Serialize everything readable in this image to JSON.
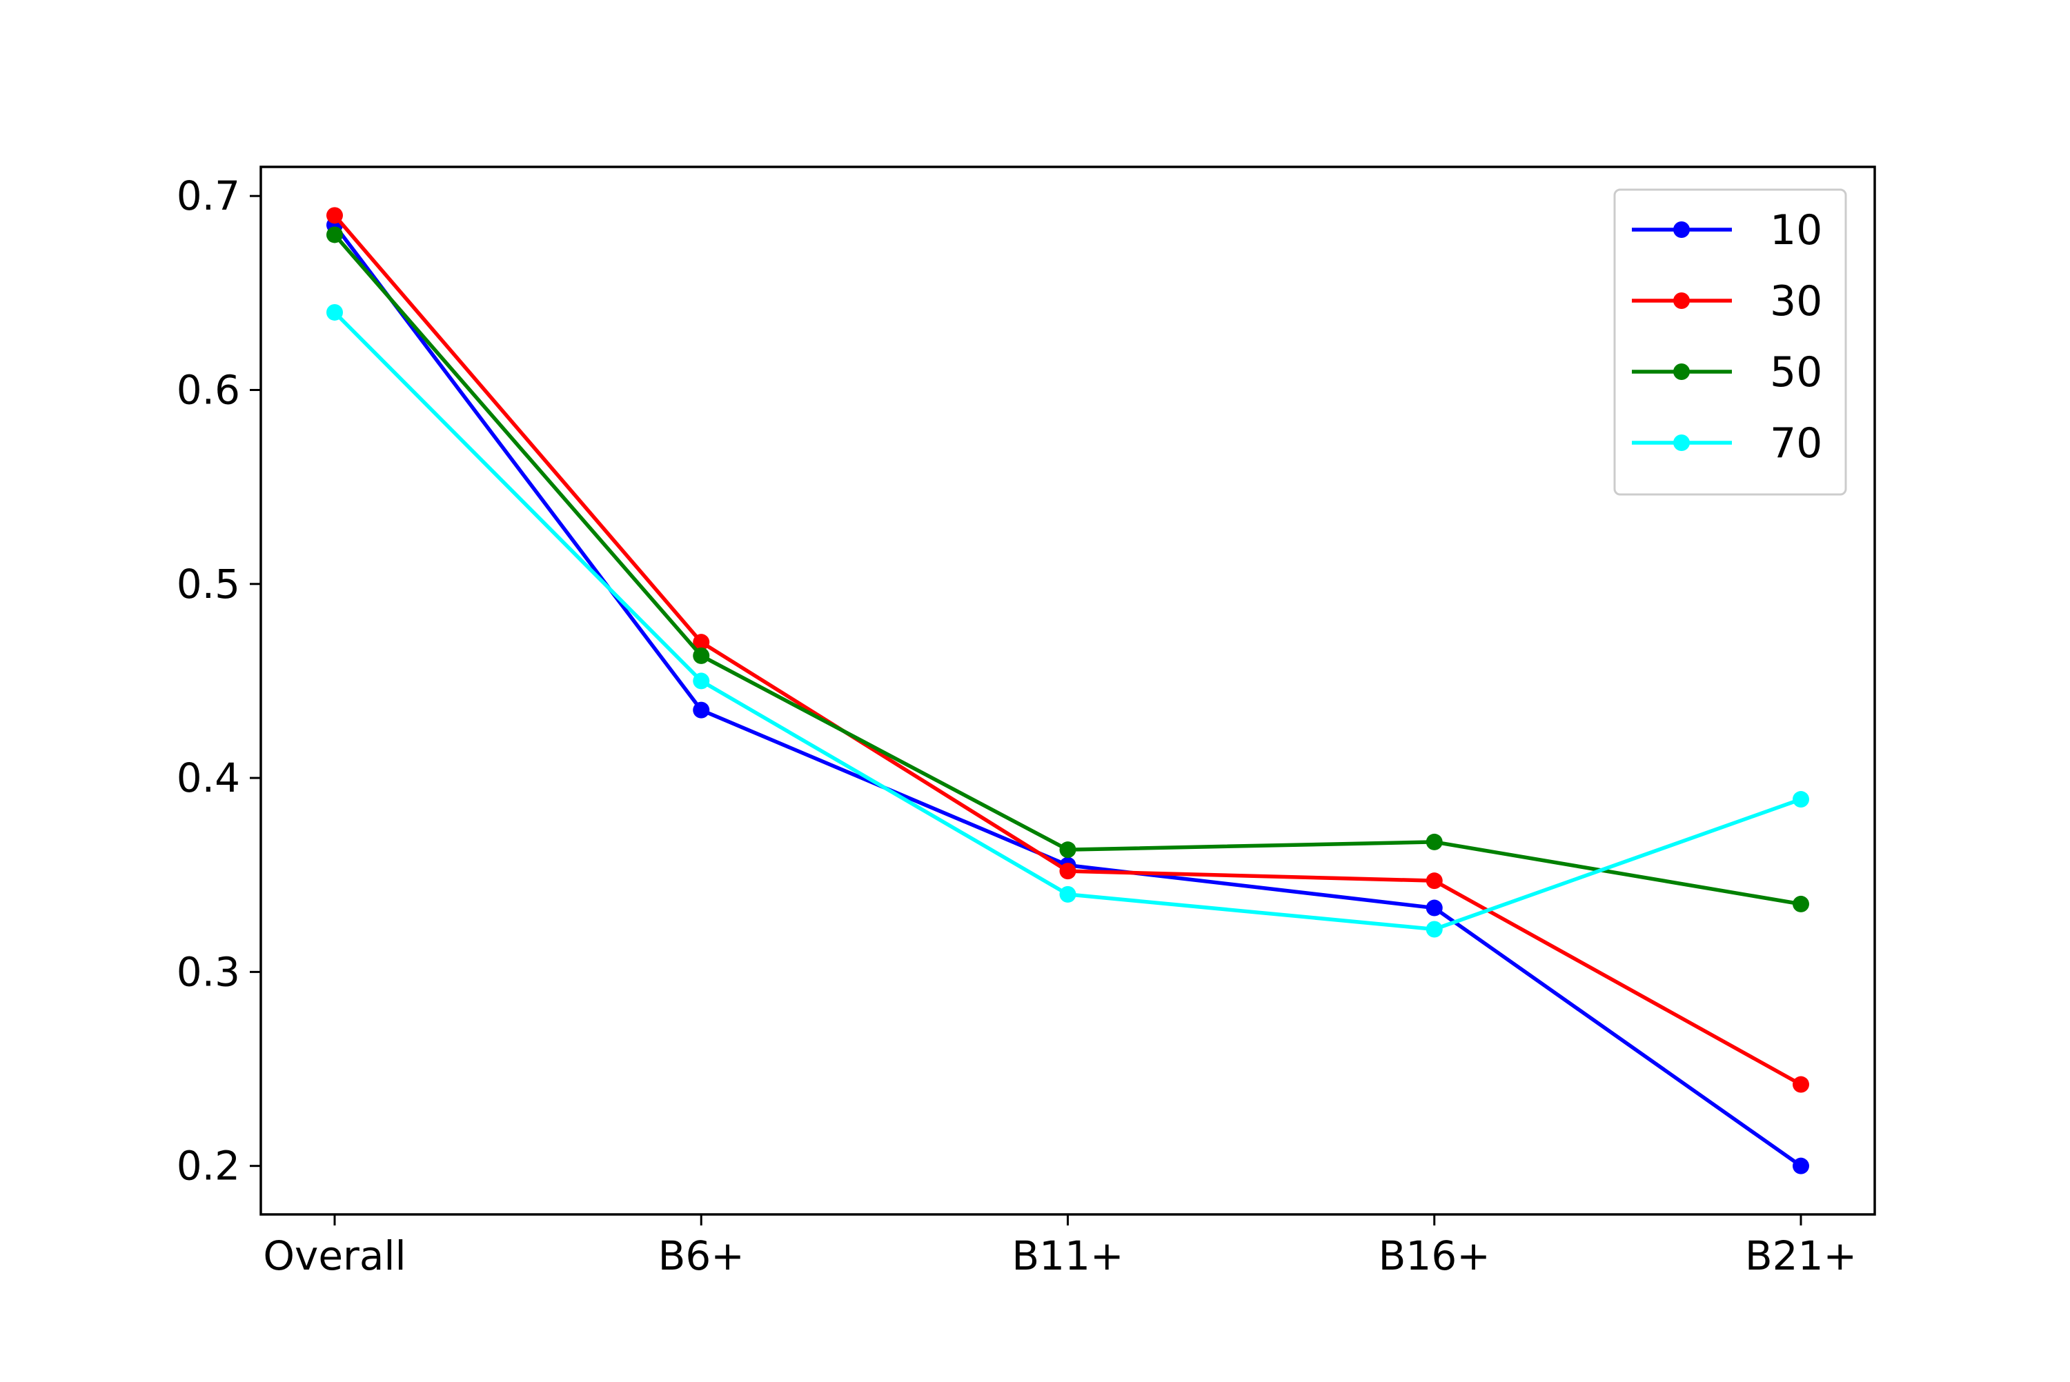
{
  "chart_data": {
    "type": "line",
    "title": "",
    "xlabel": "",
    "ylabel": "",
    "categories": [
      "Overall",
      "B6+",
      "B11+",
      "B16+",
      "B21+"
    ],
    "ylim": [
      0.175,
      0.715
    ],
    "yticks": [
      0.2,
      0.3,
      0.4,
      0.5,
      0.6,
      0.7
    ],
    "ytick_labels": [
      "0.2",
      "0.3",
      "0.4",
      "0.5",
      "0.6",
      "0.7"
    ],
    "grid": false,
    "legend": "upper-right",
    "series": [
      {
        "name": "10",
        "color": "#0000ff",
        "values": [
          0.685,
          0.435,
          0.355,
          0.333,
          0.2
        ]
      },
      {
        "name": "30",
        "color": "#ff0000",
        "values": [
          0.69,
          0.47,
          0.352,
          0.347,
          0.242
        ]
      },
      {
        "name": "50",
        "color": "#008000",
        "values": [
          0.68,
          0.463,
          0.363,
          0.367,
          0.335
        ]
      },
      {
        "name": "70",
        "color": "#00ffff",
        "values": [
          0.64,
          0.45,
          0.34,
          0.322,
          0.389
        ]
      }
    ]
  }
}
